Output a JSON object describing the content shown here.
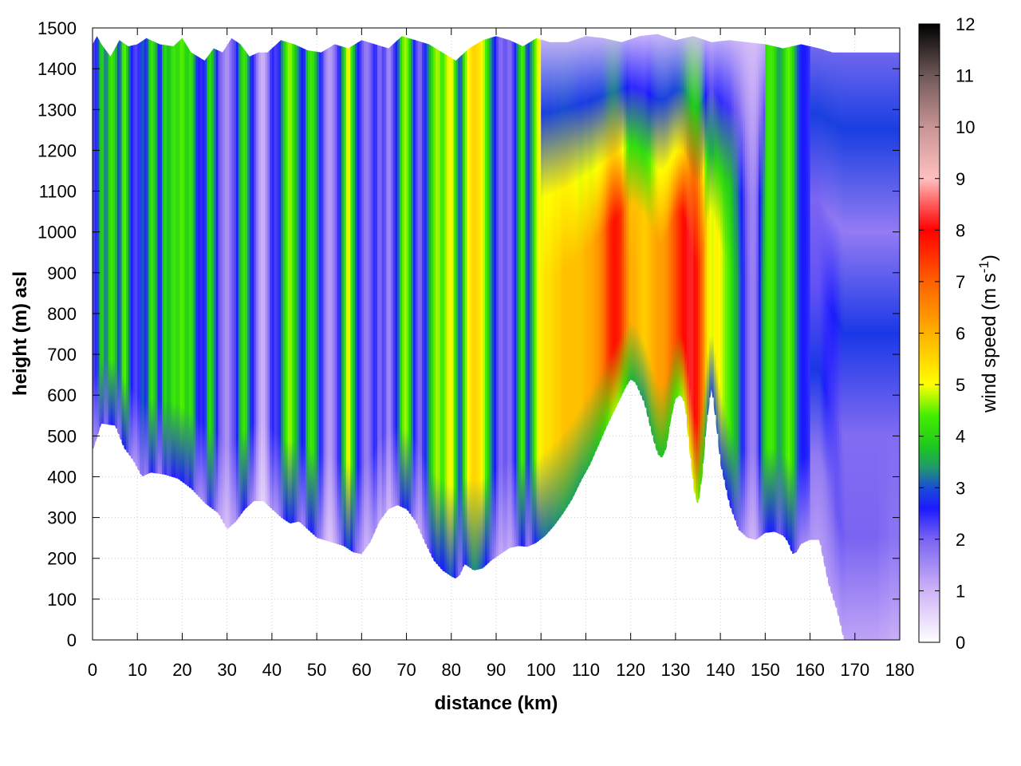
{
  "chart_data": {
    "type": "heatmap",
    "xlabel": "distance (km)",
    "ylabel": "height (m) asl",
    "colorbar_label": "wind speed (m s",
    "colorbar_label_sup": "-1",
    "colorbar_label_close": ")",
    "xlim": [
      0,
      180
    ],
    "ylim": [
      0,
      1500
    ],
    "zlim": [
      0,
      12
    ],
    "x_ticks": [
      0,
      10,
      20,
      30,
      40,
      50,
      60,
      70,
      80,
      90,
      100,
      110,
      120,
      130,
      140,
      150,
      160,
      170,
      180
    ],
    "x_tick_labels": [
      "0",
      "10",
      "20",
      "30",
      "40",
      "50",
      "60",
      "70",
      "80",
      "90",
      "100",
      "110",
      "120",
      "130",
      "140",
      "150",
      "160",
      "170",
      "180"
    ],
    "y_ticks": [
      0,
      100,
      200,
      300,
      400,
      500,
      600,
      700,
      800,
      900,
      1000,
      1100,
      1200,
      1300,
      1400,
      1500
    ],
    "y_tick_labels": [
      "0",
      "100",
      "200",
      "300",
      "400",
      "500",
      "600",
      "700",
      "800",
      "900",
      "1000",
      "1100",
      "1200",
      "1300",
      "1400",
      "1500"
    ],
    "z_ticks": [
      0,
      1,
      2,
      3,
      4,
      5,
      6,
      7,
      8,
      9,
      10,
      11,
      12
    ],
    "z_tick_labels": [
      "0",
      "1",
      "2",
      "3",
      "4",
      "5",
      "6",
      "7",
      "8",
      "9",
      "10",
      "11",
      "12"
    ],
    "grid": true,
    "colormap": [
      [
        0,
        "#ffffff"
      ],
      [
        1,
        "#cfb3f7"
      ],
      [
        2,
        "#7a64f2"
      ],
      [
        2.6,
        "#1a1aff"
      ],
      [
        3,
        "#1a4dd6"
      ],
      [
        3.4,
        "#1f9a6a"
      ],
      [
        3.8,
        "#1ec81e"
      ],
      [
        4.4,
        "#44ee00"
      ],
      [
        5,
        "#ffff00"
      ],
      [
        6,
        "#ffb000"
      ],
      [
        7,
        "#ff6000"
      ],
      [
        8,
        "#ff0000"
      ],
      [
        8.5,
        "#ff5a5a"
      ],
      [
        9,
        "#ffc0c0"
      ],
      [
        10,
        "#c89494"
      ],
      [
        11,
        "#705858"
      ],
      [
        12,
        "#000000"
      ]
    ],
    "terrain": [
      [
        0,
        460
      ],
      [
        2,
        530
      ],
      [
        5,
        525
      ],
      [
        7,
        470
      ],
      [
        9,
        440
      ],
      [
        11,
        400
      ],
      [
        13,
        410
      ],
      [
        16,
        405
      ],
      [
        19,
        395
      ],
      [
        22,
        370
      ],
      [
        25,
        335
      ],
      [
        28,
        310
      ],
      [
        30,
        270
      ],
      [
        32,
        290
      ],
      [
        34,
        320
      ],
      [
        36,
        340
      ],
      [
        38,
        340
      ],
      [
        40,
        320
      ],
      [
        42,
        300
      ],
      [
        44,
        285
      ],
      [
        46,
        290
      ],
      [
        48,
        270
      ],
      [
        50,
        250
      ],
      [
        53,
        240
      ],
      [
        56,
        230
      ],
      [
        58,
        215
      ],
      [
        60,
        210
      ],
      [
        62,
        240
      ],
      [
        64,
        290
      ],
      [
        66,
        320
      ],
      [
        68,
        330
      ],
      [
        70,
        320
      ],
      [
        72,
        290
      ],
      [
        74,
        240
      ],
      [
        76,
        195
      ],
      [
        78,
        170
      ],
      [
        80,
        155
      ],
      [
        81,
        150
      ],
      [
        82,
        160
      ],
      [
        83,
        185
      ],
      [
        85,
        170
      ],
      [
        87,
        175
      ],
      [
        89,
        195
      ],
      [
        91,
        210
      ],
      [
        93,
        225
      ],
      [
        95,
        230
      ],
      [
        97,
        228
      ],
      [
        99,
        238
      ],
      [
        101,
        255
      ],
      [
        103,
        280
      ],
      [
        105,
        310
      ],
      [
        107,
        345
      ],
      [
        109,
        390
      ],
      [
        111,
        430
      ],
      [
        113,
        480
      ],
      [
        115,
        530
      ],
      [
        117,
        575
      ],
      [
        119,
        620
      ],
      [
        120,
        638
      ],
      [
        121,
        630
      ],
      [
        123,
        580
      ],
      [
        125,
        490
      ],
      [
        126,
        455
      ],
      [
        127,
        445
      ],
      [
        128,
        470
      ],
      [
        129,
        540
      ],
      [
        130,
        590
      ],
      [
        131,
        600
      ],
      [
        132,
        580
      ],
      [
        133,
        470
      ],
      [
        134,
        370
      ],
      [
        135,
        325
      ],
      [
        136,
        400
      ],
      [
        137,
        530
      ],
      [
        138,
        615
      ],
      [
        139,
        530
      ],
      [
        140,
        430
      ],
      [
        142,
        330
      ],
      [
        144,
        270
      ],
      [
        146,
        250
      ],
      [
        148,
        245
      ],
      [
        150,
        262
      ],
      [
        152,
        265
      ],
      [
        154,
        255
      ],
      [
        155,
        240
      ],
      [
        156,
        210
      ],
      [
        157,
        215
      ],
      [
        158,
        235
      ],
      [
        160,
        245
      ],
      [
        162,
        245
      ],
      [
        164,
        140
      ],
      [
        166,
        70
      ],
      [
        167.5,
        0
      ],
      [
        180,
        0
      ]
    ],
    "top": [
      [
        0,
        1460
      ],
      [
        1,
        1480
      ],
      [
        2,
        1460
      ],
      [
        4,
        1430
      ],
      [
        6,
        1470
      ],
      [
        8,
        1455
      ],
      [
        10,
        1460
      ],
      [
        12,
        1475
      ],
      [
        15,
        1460
      ],
      [
        18,
        1455
      ],
      [
        20,
        1475
      ],
      [
        22,
        1440
      ],
      [
        25,
        1420
      ],
      [
        27,
        1450
      ],
      [
        29,
        1440
      ],
      [
        31,
        1475
      ],
      [
        33,
        1460
      ],
      [
        35,
        1430
      ],
      [
        37,
        1440
      ],
      [
        39,
        1440
      ],
      [
        42,
        1470
      ],
      [
        45,
        1460
      ],
      [
        48,
        1445
      ],
      [
        51,
        1440
      ],
      [
        54,
        1460
      ],
      [
        57,
        1450
      ],
      [
        60,
        1470
      ],
      [
        63,
        1460
      ],
      [
        66,
        1450
      ],
      [
        69,
        1480
      ],
      [
        72,
        1470
      ],
      [
        75,
        1460
      ],
      [
        78,
        1440
      ],
      [
        81,
        1420
      ],
      [
        84,
        1450
      ],
      [
        87,
        1470
      ],
      [
        90,
        1480
      ],
      [
        93,
        1470
      ],
      [
        96,
        1455
      ],
      [
        99,
        1475
      ],
      [
        102,
        1465
      ],
      [
        106,
        1465
      ],
      [
        110,
        1480
      ],
      [
        114,
        1475
      ],
      [
        118,
        1465
      ],
      [
        122,
        1480
      ],
      [
        126,
        1485
      ],
      [
        130,
        1470
      ],
      [
        134,
        1480
      ],
      [
        138,
        1465
      ],
      [
        142,
        1470
      ],
      [
        146,
        1465
      ],
      [
        150,
        1460
      ],
      [
        154,
        1450
      ],
      [
        158,
        1460
      ],
      [
        162,
        1450
      ],
      [
        165,
        1440
      ],
      [
        180,
        1440
      ]
    ]
  }
}
